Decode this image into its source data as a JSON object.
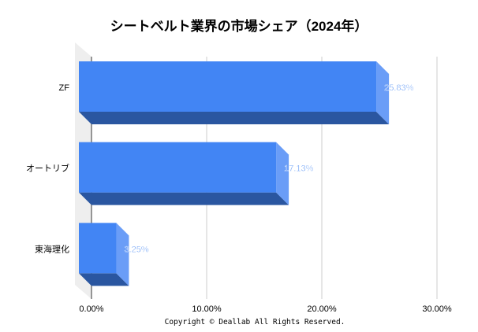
{
  "chart_data": {
    "type": "bar",
    "orientation": "horizontal",
    "style": "3d",
    "title": "シートベルト業界の市場シェア（2024年）",
    "categories": [
      "ZF",
      "オートリブ",
      "東海理化"
    ],
    "values": [
      25.83,
      17.13,
      3.25
    ],
    "data_labels": [
      "25.83%",
      "17.13%",
      "3.25%"
    ],
    "xlim": [
      0,
      30
    ],
    "xticks": [
      0,
      10,
      20,
      30
    ],
    "xtick_labels": [
      "0.00%",
      "10.00%",
      "20.00%",
      "30.00%"
    ],
    "grid": true,
    "colors": {
      "front": "#4285f4",
      "side": "#6a9df7",
      "bottom": "#2a56a0",
      "label": "#5b95f5"
    }
  },
  "footer": "Copyright © Deallab All Rights Reserved."
}
